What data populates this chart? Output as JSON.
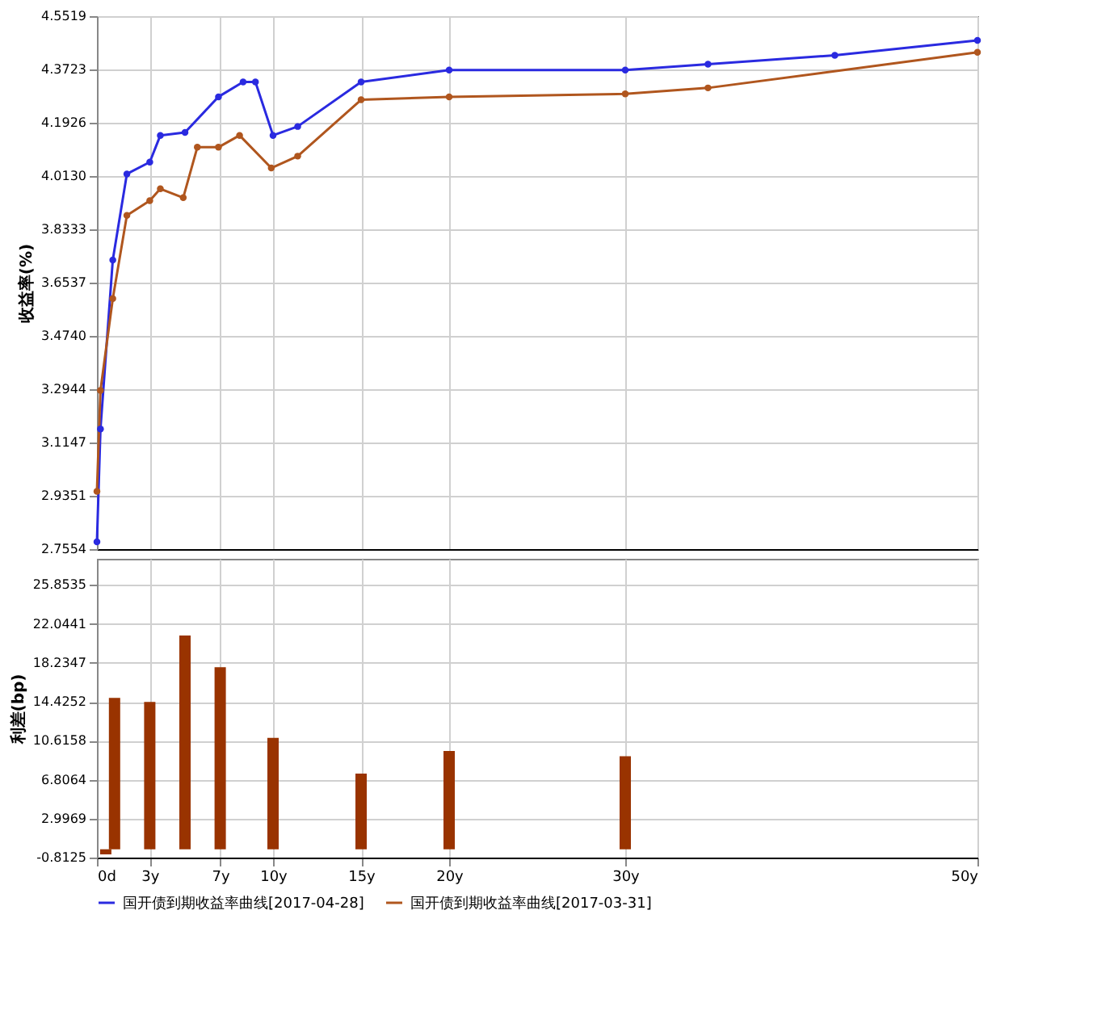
{
  "chart_data": [
    {
      "type": "line",
      "ylabel": "收益率(%)",
      "marker": "circle",
      "line_style": "solid",
      "grid": true,
      "legend": "bottom",
      "tick_labels": "y",
      "xlim": [
        0,
        50
      ],
      "xticks": [
        0,
        3,
        7,
        10,
        15,
        20,
        30,
        50
      ],
      "ylim": [
        2.7554,
        4.5519
      ],
      "yticks": [
        {
          "value": 2.7554,
          "label": "2.7554"
        },
        {
          "value": 2.9351,
          "label": "2.9351"
        },
        {
          "value": 3.1147,
          "label": "3.1147"
        },
        {
          "value": 3.2944,
          "label": "3.2944"
        },
        {
          "value": 3.474,
          "label": "3.4740"
        },
        {
          "value": 3.6537,
          "label": "3.6537"
        },
        {
          "value": 3.8333,
          "label": "3.8333"
        },
        {
          "value": 4.013,
          "label": "4.0130"
        },
        {
          "value": 4.1926,
          "label": "4.1926"
        },
        {
          "value": 4.3723,
          "label": "4.3723"
        },
        {
          "value": 4.5519,
          "label": "4.5519"
        }
      ],
      "series": [
        {
          "name": "国开债到期收益率曲线[2017-04-28]",
          "color": "#2a2ae0",
          "x": [
            0,
            0.2,
            0.9,
            1.7,
            3,
            3.6,
            5,
            6.9,
            8.3,
            9,
            10,
            11.4,
            15,
            20,
            30,
            34.7,
            41.9,
            50
          ],
          "values": [
            2.78,
            3.16,
            3.73,
            4.02,
            4.06,
            4.15,
            4.16,
            4.28,
            4.33,
            4.33,
            4.15,
            4.18,
            4.33,
            4.37,
            4.37,
            4.39,
            4.42,
            4.47
          ]
        },
        {
          "name": "国开债到期收益率曲线[2017-03-31]",
          "color": "#b0561e",
          "x": [
            0,
            0.2,
            0.9,
            1.7,
            3,
            3.6,
            4.9,
            5.7,
            6.9,
            8.1,
            9.9,
            11.4,
            15,
            20,
            30,
            34.7,
            50
          ],
          "values": [
            2.95,
            3.29,
            3.6,
            3.88,
            3.93,
            3.97,
            3.94,
            4.11,
            4.11,
            4.15,
            4.04,
            4.08,
            4.27,
            4.28,
            4.29,
            4.31,
            4.43
          ]
        }
      ]
    },
    {
      "type": "bar",
      "ylabel": "利差(bp)",
      "grid": true,
      "xlim": [
        0,
        50
      ],
      "xticks": [
        {
          "value": 0,
          "label": "0d"
        },
        {
          "value": 3,
          "label": "3y"
        },
        {
          "value": 7,
          "label": "7y"
        },
        {
          "value": 10,
          "label": "10y"
        },
        {
          "value": 15,
          "label": "15y"
        },
        {
          "value": 20,
          "label": "20y"
        },
        {
          "value": 30,
          "label": "30y"
        },
        {
          "value": 50,
          "label": "50y"
        }
      ],
      "ylim": [
        -0.8125,
        28.4
      ],
      "yticks": [
        {
          "value": -0.8125,
          "label": "-0.8125"
        },
        {
          "value": 2.9969,
          "label": "2.9969"
        },
        {
          "value": 6.8064,
          "label": "6.8064"
        },
        {
          "value": 10.6158,
          "label": "10.6158"
        },
        {
          "value": 14.4252,
          "label": "14.4252"
        },
        {
          "value": 18.2347,
          "label": "18.2347"
        },
        {
          "value": 22.0441,
          "label": "22.0441"
        },
        {
          "value": 25.8535,
          "label": "25.8535"
        }
      ],
      "series": [
        {
          "color": "#993300",
          "x": [
            0.5,
            1,
            3,
            5,
            7,
            10,
            15,
            20,
            30
          ],
          "values": [
            -0.5,
            14.8,
            14.4,
            20.9,
            17.8,
            10.9,
            7.4,
            9.6,
            9.1
          ]
        }
      ]
    }
  ]
}
